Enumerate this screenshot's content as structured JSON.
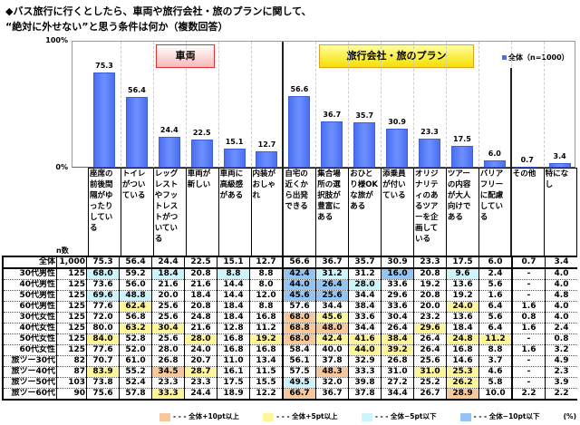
{
  "title_line1": "◆バス旅行に行くとしたら、車両や旅行会社・旅のプランに関して、",
  "title_line2": "“絶対に外せない”と思う条件は何か（複数回答）",
  "group_labels": {
    "vehicle": "車両",
    "travel": "旅行会社・旅のプラン"
  },
  "n_header": "n数",
  "unit": "(%)",
  "colors": {
    "bar": "#5b7cf5",
    "plus10": "#f9c89a",
    "plus5": "#fff59a",
    "minus5": "#cdf3fb",
    "minus10": "#92c4f4"
  },
  "legend": [
    "- - - 全体+10pt以上",
    "- - - 全体+5pt以上",
    "- - - 全体−5pt以下",
    "- - - 全体−10pt以下"
  ],
  "chart_data": {
    "type": "bar",
    "title": "“絶対に外せない”と思う条件は何か（複数回答）",
    "legend": "全体（n=1000）",
    "legend_position": "top-right",
    "ylim": [
      0,
      100
    ],
    "yticks": [
      "100%",
      "0%"
    ],
    "categories": [
      "座席の前後間隔がゆったりしている",
      "トイレがついている",
      "レッグレストやフットレストがついている",
      "車両が新しい",
      "車両に高級感がある",
      "内装がおしゃれ",
      "自宅の近くから出発できる",
      "集合場所の選択肢が豊富にある",
      "おひとり様OKな旅がある",
      "添乗員が付いている",
      "オリジナリティのあるツアーを企画している",
      "ツアーの内容が大人向けである",
      "バリアフリーに配慮している",
      "その他",
      "特になし"
    ],
    "values": [
      75.3,
      56.4,
      24.4,
      22.5,
      15.1,
      12.7,
      56.6,
      36.7,
      35.7,
      30.9,
      23.3,
      17.5,
      6.0,
      0.7,
      3.4
    ],
    "value_labels": [
      "75.3",
      "56.4",
      "24.4",
      "22.5",
      "15.1",
      "12.7",
      "56.6",
      "36.7",
      "35.7",
      "30.9",
      "23.3",
      "17.5",
      "6.0",
      "0.7",
      "3.4"
    ]
  },
  "table": [
    {
      "label": "全体",
      "n": "1,000",
      "v": [
        "75.3",
        "56.4",
        "24.4",
        "22.5",
        "15.1",
        "12.7",
        "56.6",
        "36.7",
        "35.7",
        "30.9",
        "23.3",
        "17.5",
        "6.0",
        "0.7",
        "3.4"
      ]
    },
    {
      "label": "30代男性",
      "n": "125",
      "v": [
        "68.0",
        "59.2",
        "18.4",
        "20.8",
        "8.8",
        "8.8",
        "42.4",
        "31.2",
        "31.2",
        "16.0",
        "20.8",
        "9.6",
        "2.4",
        "-",
        "4.0"
      ]
    },
    {
      "label": "40代男性",
      "n": "125",
      "v": [
        "73.6",
        "56.0",
        "21.6",
        "21.6",
        "14.4",
        "8.0",
        "44.0",
        "26.4",
        "28.0",
        "33.6",
        "19.2",
        "13.6",
        "5.6",
        "-",
        "4.0"
      ]
    },
    {
      "label": "50代男性",
      "n": "125",
      "v": [
        "69.6",
        "48.8",
        "20.0",
        "18.4",
        "14.4",
        "12.0",
        "45.6",
        "25.6",
        "34.4",
        "29.6",
        "20.8",
        "19.2",
        "1.6",
        "-",
        "4.8"
      ]
    },
    {
      "label": "60代男性",
      "n": "125",
      "v": [
        "77.6",
        "62.4",
        "25.6",
        "20.8",
        "18.4",
        "8.8",
        "57.6",
        "34.4",
        "38.4",
        "33.6",
        "20.0",
        "24.0",
        "6.4",
        "1.6",
        "4.0"
      ]
    },
    {
      "label": "30代女性",
      "n": "125",
      "v": [
        "72.0",
        "56.8",
        "25.6",
        "24.8",
        "18.4",
        "16.8",
        "68.0",
        "45.6",
        "33.6",
        "30.4",
        "23.2",
        "13.6",
        "5.6",
        "0.8",
        "4.0"
      ]
    },
    {
      "label": "40代女性",
      "n": "125",
      "v": [
        "80.0",
        "63.2",
        "30.4",
        "21.6",
        "12.8",
        "11.2",
        "68.8",
        "48.0",
        "34.4",
        "26.4",
        "29.6",
        "18.4",
        "6.4",
        "1.6",
        "2.4"
      ]
    },
    {
      "label": "50代女性",
      "n": "125",
      "v": [
        "84.0",
        "52.8",
        "25.6",
        "28.0",
        "16.8",
        "19.2",
        "68.0",
        "42.4",
        "41.6",
        "38.4",
        "26.4",
        "24.8",
        "11.2",
        "-",
        "0.8"
      ]
    },
    {
      "label": "60代女性",
      "n": "125",
      "v": [
        "77.6",
        "52.0",
        "28.0",
        "24.0",
        "16.8",
        "16.8",
        "58.4",
        "40.0",
        "44.0",
        "39.2",
        "26.4",
        "16.8",
        "8.8",
        "1.6",
        "3.2"
      ]
    },
    {
      "label": "旅ツー30代",
      "n": "82",
      "v": [
        "70.7",
        "61.0",
        "26.8",
        "20.7",
        "11.0",
        "13.4",
        "56.1",
        "37.8",
        "32.9",
        "26.8",
        "25.6",
        "14.6",
        "3.7",
        "-",
        "4.9"
      ]
    },
    {
      "label": "旅ツー40代",
      "n": "87",
      "v": [
        "83.9",
        "55.2",
        "34.5",
        "28.7",
        "16.1",
        "11.5",
        "57.5",
        "48.3",
        "33.3",
        "31.0",
        "31.0",
        "25.3",
        "4.6",
        "-",
        "2.3"
      ]
    },
    {
      "label": "旅ツー50代",
      "n": "103",
      "v": [
        "73.8",
        "52.4",
        "23.3",
        "23.3",
        "17.5",
        "15.5",
        "49.5",
        "32.0",
        "39.8",
        "27.2",
        "25.2",
        "26.2",
        "5.8",
        "-",
        "3.9"
      ]
    },
    {
      "label": "旅ツー60代",
      "n": "90",
      "v": [
        "75.6",
        "57.8",
        "33.3",
        "24.4",
        "18.9",
        "12.2",
        "66.7",
        "36.7",
        "37.8",
        "34.4",
        "26.7",
        "28.9",
        "10.0",
        "2.2",
        "2.2"
      ]
    }
  ]
}
